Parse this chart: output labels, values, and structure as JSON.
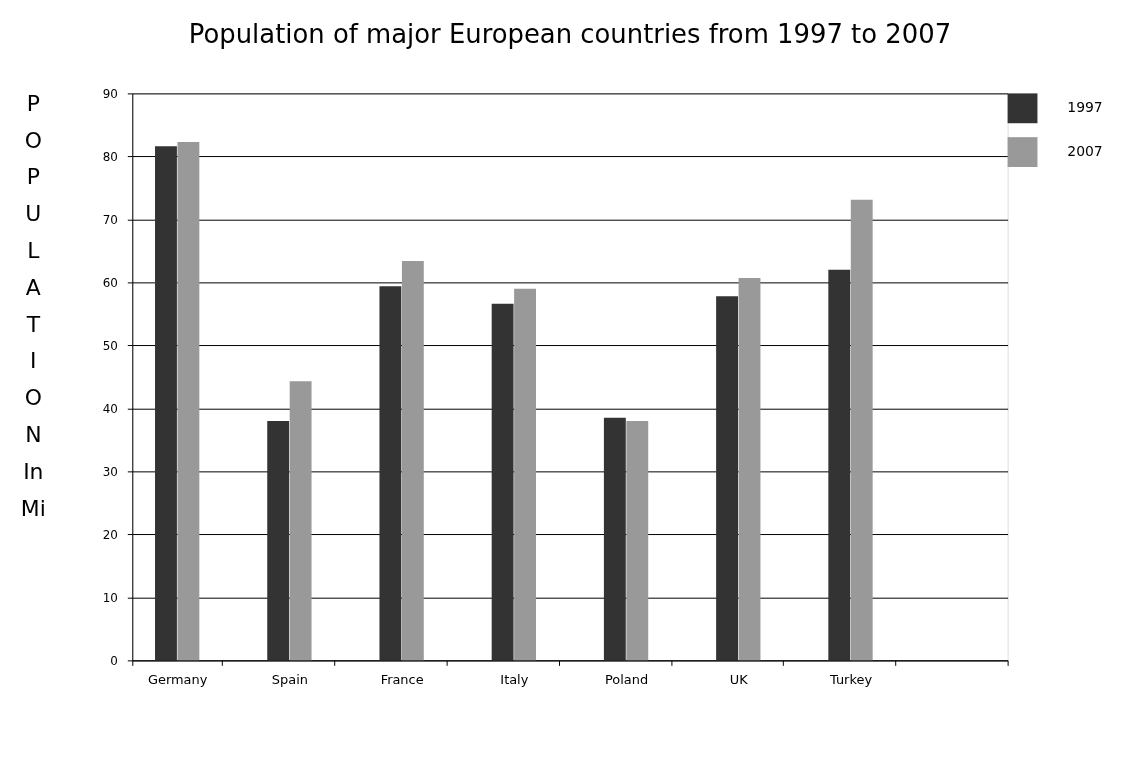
{
  "chart_data": {
    "type": "bar",
    "title": "Population of major European countries from 1997 to 2007",
    "ylabel": "POPULATION In Mi",
    "categories": [
      "Germany",
      "Spain",
      "France",
      "Italy",
      "Poland",
      "UK",
      "Turkey",
      null
    ],
    "series": [
      {
        "name": "1997",
        "color": "#333333",
        "values": [
          81.6,
          38.0,
          59.4,
          56.6,
          38.5,
          57.8,
          62.0,
          null
        ]
      },
      {
        "name": "2007",
        "color": "#999999",
        "values": [
          82.3,
          44.3,
          63.4,
          59.0,
          38.0,
          60.7,
          73.1,
          null
        ]
      }
    ],
    "ylim": [
      0,
      90
    ],
    "yticks": [
      0,
      10,
      20,
      30,
      40,
      50,
      60,
      70,
      80,
      90
    ],
    "grid": "y",
    "legend": "right"
  }
}
